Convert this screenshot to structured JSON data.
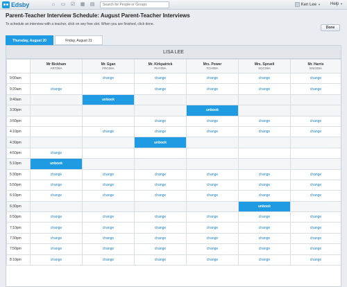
{
  "topbar": {
    "logo_text": "Edsby",
    "icons": [
      "home-icon",
      "chat-icon",
      "check-icon",
      "calendar-icon",
      "document-icon"
    ],
    "search_placeholder": "Search for People or Groups",
    "user_name": "Ken Lee",
    "help_label": "Help"
  },
  "page": {
    "title": "Parent-Teacher Interview Schedule: August Parent-Teacher Interviews",
    "instructions": "To schedule an interview with a teacher, click on any free slot. When you are finished, click done.",
    "done_label": "Done"
  },
  "tabs": [
    {
      "label": "Thursday, August 20",
      "active": true
    },
    {
      "label": "Friday, August 21",
      "active": false
    }
  ],
  "schedule": {
    "student": "LISA LEE",
    "teachers": [
      {
        "name": "Mr Bickham",
        "room": "ART09A"
      },
      {
        "name": "Mr. Egan",
        "room": "FRC09A"
      },
      {
        "name": "Mr. Kirkpatrick",
        "room": "PHY09A"
      },
      {
        "name": "Mrs. Power",
        "room": "TCH09A"
      },
      {
        "name": "Mrs. Spruell",
        "room": "SOC09A"
      },
      {
        "name": "Mr. Harris",
        "room": "ENG09A"
      }
    ],
    "rows": [
      {
        "time": "9:00am",
        "cells": [
          "",
          "change",
          "change",
          "change",
          "change",
          "change"
        ]
      },
      {
        "time": "9:20am",
        "cells": [
          "change",
          "",
          "change",
          "change",
          "change",
          "change"
        ]
      },
      {
        "time": "9:40am",
        "cells": [
          "",
          "unbook",
          "",
          "",
          "",
          ""
        ]
      },
      {
        "time": "3:30pm",
        "cells": [
          "",
          "",
          "",
          "unbook",
          "",
          ""
        ]
      },
      {
        "time": "3:50pm",
        "cells": [
          "",
          "",
          "change",
          "change",
          "change",
          "change"
        ]
      },
      {
        "time": "4:10pm",
        "cells": [
          "",
          "change",
          "change",
          "change",
          "change",
          "change"
        ]
      },
      {
        "time": "4:30pm",
        "cells": [
          "",
          "",
          "unbook",
          "",
          "",
          ""
        ]
      },
      {
        "time": "4:50pm",
        "cells": [
          "change",
          "",
          "",
          "",
          "",
          ""
        ]
      },
      {
        "time": "5:10pm",
        "cells": [
          "unbook",
          "",
          "",
          "",
          "",
          ""
        ]
      },
      {
        "time": "5:30pm",
        "cells": [
          "change",
          "change",
          "change",
          "change",
          "change",
          "change"
        ]
      },
      {
        "time": "5:50pm",
        "cells": [
          "change",
          "change",
          "change",
          "change",
          "change",
          "change"
        ]
      },
      {
        "time": "6:10pm",
        "cells": [
          "change",
          "change",
          "change",
          "change",
          "change",
          "change"
        ]
      },
      {
        "time": "6:30pm",
        "cells": [
          "",
          "",
          "",
          "",
          "unbook",
          ""
        ]
      },
      {
        "time": "6:50pm",
        "cells": [
          "change",
          "change",
          "change",
          "change",
          "change",
          "change"
        ]
      },
      {
        "time": "7:10pm",
        "cells": [
          "change",
          "change",
          "change",
          "change",
          "change",
          "change"
        ]
      },
      {
        "time": "7:30pm",
        "cells": [
          "change",
          "change",
          "change",
          "change",
          "change",
          "change"
        ]
      },
      {
        "time": "7:50pm",
        "cells": [
          "change",
          "change",
          "change",
          "change",
          "change",
          "change"
        ]
      },
      {
        "time": "8:10pm",
        "cells": [
          "change",
          "change",
          "change",
          "change",
          "change",
          "change"
        ]
      }
    ]
  },
  "colors": {
    "accent": "#1f9be4",
    "link": "#1a7fc4"
  }
}
